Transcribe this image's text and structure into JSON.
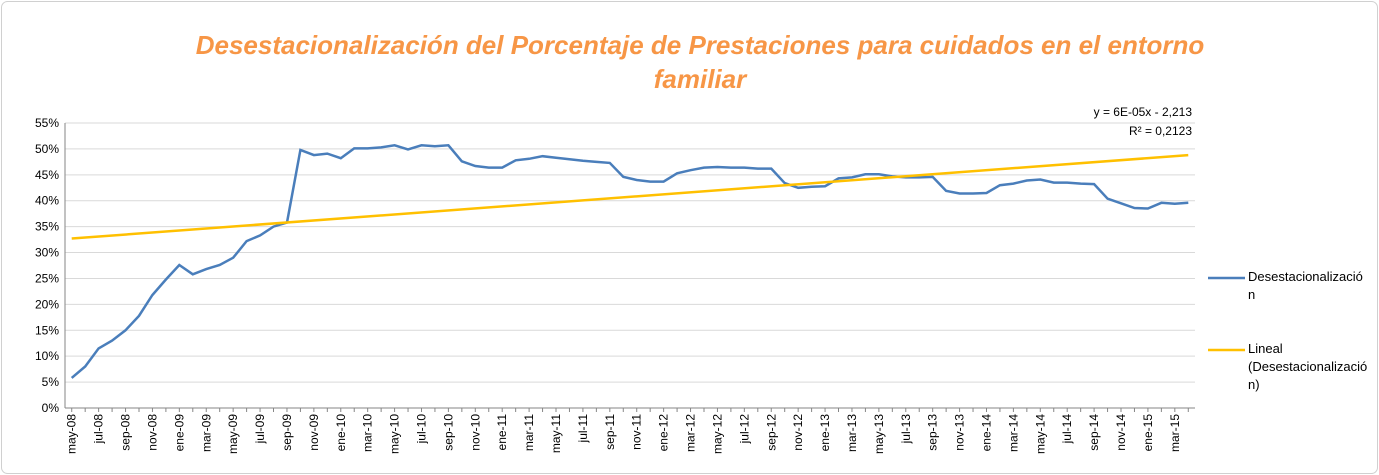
{
  "chart_data": {
    "type": "line",
    "title": "Desestacionalización del Porcentaje de Prestaciones para cuidados en el entorno familiar",
    "categories": [
      "may-08",
      null,
      "jul-08",
      null,
      "sep-08",
      null,
      "nov-08",
      null,
      "ene-09",
      null,
      "mar-09",
      null,
      "may-09",
      null,
      "jul-09",
      null,
      "sep-09",
      null,
      "nov-09",
      null,
      "ene-10",
      null,
      "mar-10",
      null,
      "may-10",
      null,
      "jul-10",
      null,
      "sep-10",
      null,
      "nov-10",
      null,
      "ene-11",
      null,
      "mar-11",
      null,
      "may-11",
      null,
      "jul-11",
      null,
      "sep-11",
      null,
      "nov-11",
      null,
      "ene-12",
      null,
      "mar-12",
      null,
      "may-12",
      null,
      "jul-12",
      null,
      "sep-12",
      null,
      "nov-12",
      null,
      "ene-13",
      null,
      "mar-13",
      null,
      "may-13",
      null,
      "jul-13",
      null,
      "sep-13",
      null,
      "nov-13",
      null,
      "ene-14",
      null,
      "mar-14",
      null,
      "may-14",
      null,
      "jul-14",
      null,
      "sep-14",
      null,
      "nov-14",
      null,
      "ene-15",
      null,
      "mar-15",
      null
    ],
    "series": [
      {
        "name": "Desestacionalización",
        "color": "#4a7ebb",
        "values": [
          5.8,
          8,
          11.5,
          13,
          15,
          17.8,
          21.8,
          24.8,
          27.6,
          25.8,
          26.8,
          27.6,
          29,
          32.2,
          33.3,
          35,
          35.8,
          49.8,
          48.8,
          49.1,
          48.2,
          50.1,
          50.1,
          50.3,
          50.7,
          49.9,
          50.7,
          50.5,
          50.7,
          47.6,
          46.7,
          46.4,
          46.4,
          47.8,
          48.1,
          48.6,
          48.3,
          48,
          47.7,
          47.5,
          47.3,
          44.6,
          44,
          43.7,
          43.7,
          45.3,
          45.9,
          46.4,
          46.5,
          46.4,
          46.4,
          46.2,
          46.2,
          43.4,
          42.5,
          42.7,
          42.8,
          44.3,
          44.5,
          45.1,
          45.1,
          44.7,
          44.5,
          44.5,
          44.6,
          41.9,
          41.4,
          41.4,
          41.5,
          43,
          43.3,
          43.9,
          44.1,
          43.5,
          43.5,
          43.3,
          43.2,
          40.4,
          39.5,
          38.6,
          38.5,
          39.6,
          39.4,
          39.6
        ]
      }
    ],
    "trendline": {
      "name": "Lineal (Desestacionalización)",
      "color": "#ffc000",
      "start": 32.7,
      "end": 48.8,
      "equation": "y = 6E-05x - 2,213",
      "r_squared": "R² = 0,2123"
    },
    "ylim": [
      0,
      55
    ],
    "yticks": [
      {
        "value": 0,
        "label": "0%"
      },
      {
        "value": 5,
        "label": "5%"
      },
      {
        "value": 10,
        "label": "10%"
      },
      {
        "value": 15,
        "label": "15%"
      },
      {
        "value": 20,
        "label": "20%"
      },
      {
        "value": 25,
        "label": "25%"
      },
      {
        "value": 30,
        "label": "30%"
      },
      {
        "value": 35,
        "label": "35%"
      },
      {
        "value": 40,
        "label": "40%"
      },
      {
        "value": 45,
        "label": "45%"
      },
      {
        "value": 50,
        "label": "50%"
      },
      {
        "value": 55,
        "label": "55%"
      }
    ],
    "grid": true,
    "legend": "right"
  }
}
